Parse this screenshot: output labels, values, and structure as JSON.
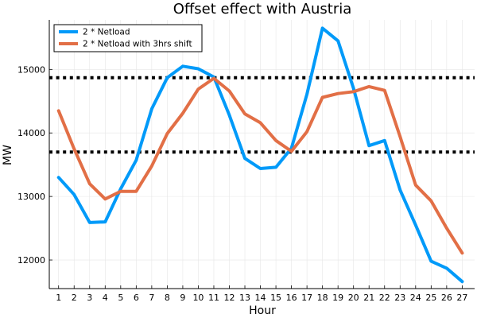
{
  "chart_data": {
    "type": "line",
    "title": "Offset effect with Austria",
    "xlabel": "Hour",
    "ylabel": "MW",
    "x": [
      1,
      2,
      3,
      4,
      5,
      6,
      7,
      8,
      9,
      10,
      11,
      12,
      13,
      14,
      15,
      16,
      17,
      18,
      19,
      20,
      21,
      22,
      23,
      24,
      25,
      26,
      27
    ],
    "xlim": [
      0.4,
      27.8
    ],
    "ylim": [
      11550,
      15780
    ],
    "yticks": [
      12000,
      13000,
      14000,
      15000
    ],
    "grid": true,
    "legend_position": "top-left",
    "series": [
      {
        "name": "2 * Netload",
        "color": "#009af9",
        "values": [
          13300,
          13030,
          12590,
          12600,
          13120,
          13570,
          14380,
          14870,
          15050,
          15010,
          14880,
          14280,
          13600,
          13440,
          13460,
          13760,
          14610,
          15650,
          15450,
          14700,
          13800,
          13880,
          13100,
          12550,
          11980,
          11870,
          11660
        ]
      },
      {
        "name": "2 * Netload with 3hrs shift",
        "color": "#e26f46",
        "values": [
          14350,
          13750,
          13200,
          12960,
          13080,
          13080,
          13480,
          13990,
          14310,
          14690,
          14860,
          14660,
          14300,
          14160,
          13880,
          13710,
          14020,
          14560,
          14620,
          14650,
          14730,
          14670,
          13940,
          13180,
          12930,
          12500,
          12110
        ]
      }
    ],
    "reference_lines": [
      {
        "y": 14870,
        "color": "#000000",
        "style": "dotted"
      },
      {
        "y": 13700,
        "color": "#000000",
        "style": "dotted"
      }
    ]
  }
}
